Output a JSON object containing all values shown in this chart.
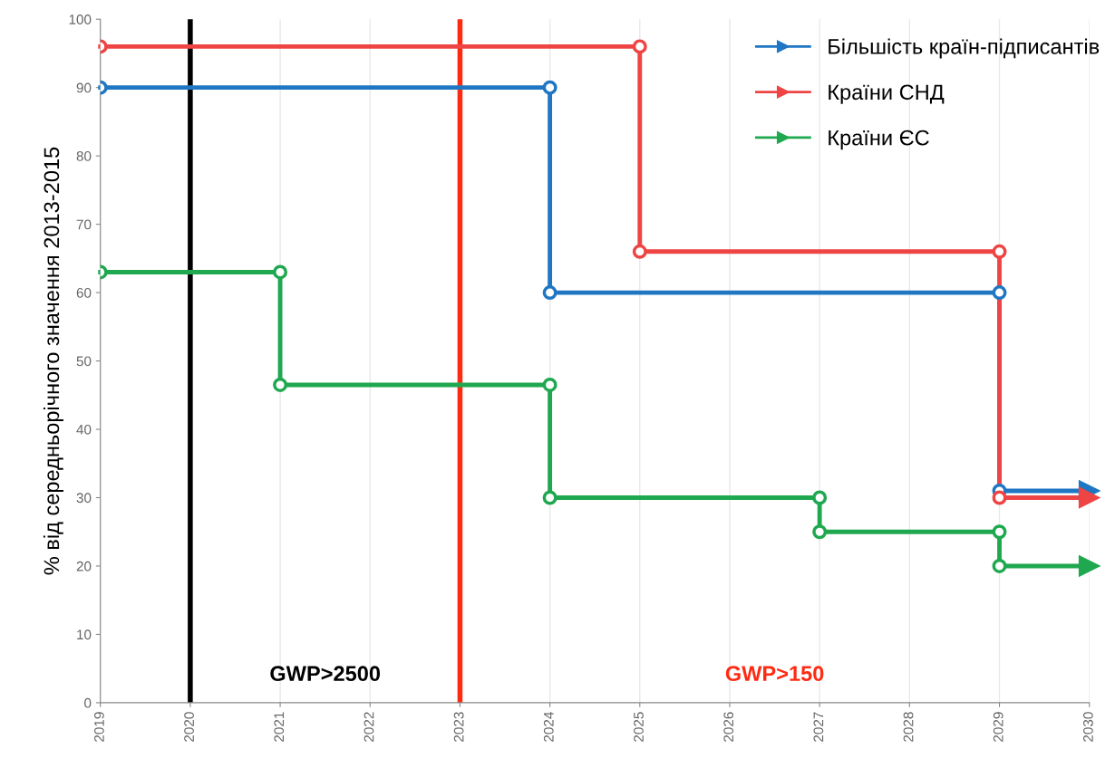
{
  "chart_data": {
    "type": "line",
    "ylabel": "% від середньорічного значення 2013-2015",
    "series": [
      {
        "name": "Більшість країн-підписантів",
        "color": "#1f77c4",
        "x": [
          2019,
          2024,
          2024,
          2029,
          2029,
          2030
        ],
        "values": [
          90,
          90,
          60,
          60,
          31,
          31
        ]
      },
      {
        "name": "Країни СНД",
        "color": "#ef4444",
        "x": [
          2019,
          2025,
          2025,
          2029,
          2029,
          2030
        ],
        "values": [
          96,
          96,
          66,
          66,
          30,
          30
        ]
      },
      {
        "name": "Країни ЄС",
        "color": "#1fa84f",
        "x": [
          2019,
          2021,
          2021,
          2024,
          2024,
          2027,
          2027,
          2029,
          2029,
          2030
        ],
        "values": [
          63,
          63,
          46.5,
          46.5,
          30,
          30,
          25,
          25,
          20,
          20
        ]
      }
    ],
    "xlim": [
      2019,
      2030
    ],
    "xticks": [
      2019,
      2020,
      2021,
      2022,
      2023,
      2024,
      2025,
      2026,
      2027,
      2028,
      2029,
      2030
    ],
    "ylim": [
      0,
      100
    ],
    "yticks": [
      0,
      10,
      20,
      30,
      40,
      50,
      60,
      70,
      80,
      90,
      100
    ],
    "ref_lines": [
      {
        "axis": "x",
        "value": 2020,
        "color": "#000000"
      },
      {
        "axis": "x",
        "value": 2023,
        "color": "#ff2a12"
      }
    ],
    "annotations": [
      "GWP>2500",
      "GWP>150"
    ],
    "grid": "x",
    "legend": "top right",
    "marker": "circle",
    "line_style": "solid"
  }
}
